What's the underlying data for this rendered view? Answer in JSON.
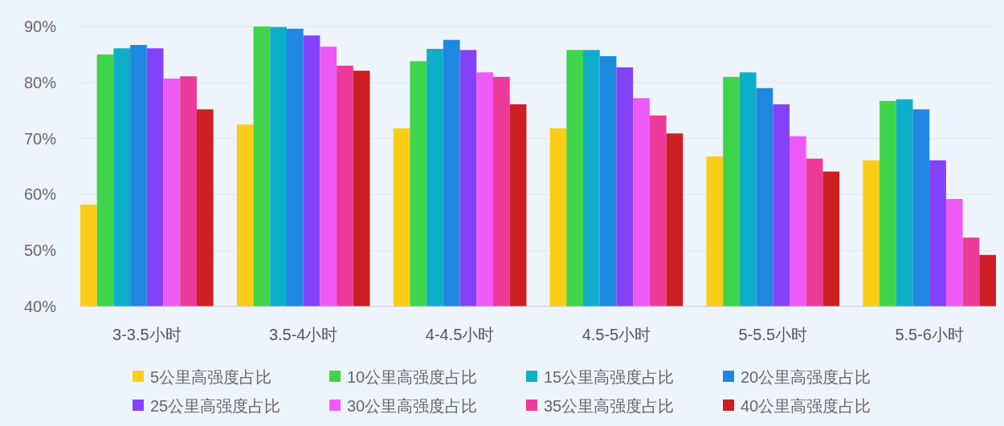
{
  "chart_data": {
    "type": "bar",
    "categories": [
      "3-3.5小时",
      "3.5-4小时",
      "4-4.5小时",
      "4.5-5小时",
      "5-5.5小时",
      "5.5-6小时"
    ],
    "series": [
      {
        "name": "5公里高强度占比",
        "color": "#fbcd14",
        "values": [
          58.2,
          72.5,
          71.8,
          71.8,
          66.8,
          66.1
        ]
      },
      {
        "name": "10公里高强度占比",
        "color": "#3fd54a",
        "values": [
          85,
          90,
          83.8,
          85.8,
          81,
          76.7
        ]
      },
      {
        "name": "15公里高强度占比",
        "color": "#0eaec9",
        "values": [
          86.1,
          89.9,
          86,
          85.8,
          81.8,
          77
        ]
      },
      {
        "name": "20公里高强度占比",
        "color": "#1e88e0",
        "values": [
          86.7,
          89.6,
          87.6,
          84.7,
          79,
          75.2
        ]
      },
      {
        "name": "25公里高强度占比",
        "color": "#8442f8",
        "values": [
          86.1,
          88.4,
          85.8,
          82.7,
          76.1,
          66.1
        ]
      },
      {
        "name": "30公里高强度占比",
        "color": "#ee5af6",
        "values": [
          80.7,
          86.4,
          81.8,
          77.2,
          70.4,
          59.2
        ]
      },
      {
        "name": "35公里高强度占比",
        "color": "#ec3a9a",
        "values": [
          81.1,
          83,
          81,
          74.1,
          66.4,
          52.3
        ]
      },
      {
        "name": "40公里高强度占比",
        "color": "#cc1f23",
        "values": [
          75.2,
          82.1,
          76.1,
          70.9,
          64.1,
          49.2
        ]
      }
    ],
    "ylim": [
      40,
      90
    ],
    "yticks": [
      {
        "value": 40,
        "label": "40%"
      },
      {
        "value": 50,
        "label": "50%"
      },
      {
        "value": 60,
        "label": "60%"
      },
      {
        "value": 70,
        "label": "70%"
      },
      {
        "value": 80,
        "label": "80%"
      },
      {
        "value": 90,
        "label": "90%"
      }
    ],
    "grid": "y",
    "legend": "bottom"
  }
}
